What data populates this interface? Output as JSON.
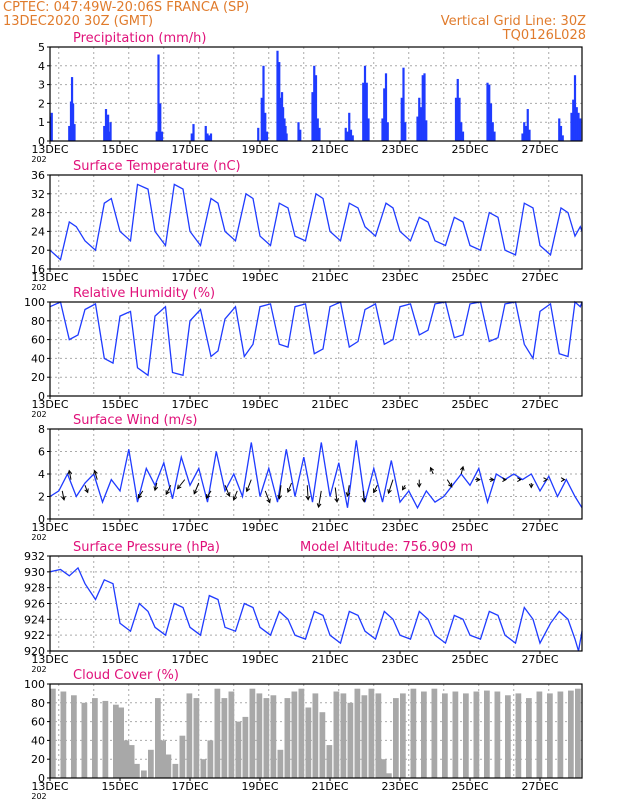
{
  "header": {
    "line1": "CPTEC:   047:49W-20:06S   FRANCA (SP)",
    "line2": "13DEC2020 30Z (GMT)",
    "grid_note": "Vertical Grid Line: 30Z",
    "run_id": "TQ0126L028"
  },
  "colors": {
    "header": "#e07b2c",
    "panel_title": "#e0117a",
    "series": "#1f3bff",
    "cloud": "#a8a8a8",
    "grid": "#aaaaaa"
  },
  "x_axis": {
    "tick_labels": [
      "13DEC",
      "15DEC",
      "17DEC",
      "19DEC",
      "21DEC",
      "23DEC",
      "25DEC",
      "27DEC"
    ],
    "year_fragment": "202",
    "start_day": 13,
    "end_day": 28.2
  },
  "chart_data": [
    {
      "id": "precip",
      "type": "bar",
      "title": "Precipitation (mm/h)",
      "ylim": [
        0,
        5
      ],
      "yticks": [
        0,
        1,
        2,
        3,
        4,
        5
      ],
      "grid": true,
      "x": [
        13.02,
        13.05,
        13.55,
        13.6,
        13.63,
        13.66,
        13.7,
        14.55,
        14.6,
        14.63,
        14.66,
        14.7,
        14.73,
        16.05,
        16.1,
        16.15,
        16.2,
        17.05,
        17.1,
        17.45,
        17.5,
        17.55,
        17.6,
        18.95,
        19.05,
        19.1,
        19.15,
        19.2,
        19.5,
        19.55,
        19.6,
        19.63,
        19.66,
        19.7,
        19.73,
        19.76,
        20.1,
        20.15,
        20.5,
        20.55,
        20.6,
        20.65,
        20.7,
        21.45,
        21.5,
        21.55,
        21.6,
        21.65,
        21.95,
        22.0,
        22.05,
        22.1,
        22.5,
        22.55,
        22.6,
        22.65,
        23.05,
        23.1,
        23.15,
        23.5,
        23.55,
        23.6,
        23.65,
        23.7,
        23.75,
        24.6,
        24.65,
        24.7,
        24.75,
        24.8,
        25.5,
        25.55,
        25.6,
        25.65,
        25.7,
        26.5,
        26.55,
        26.6,
        26.65,
        26.7,
        27.55,
        27.6,
        27.65,
        27.9,
        27.95,
        28.0,
        28.05,
        28.1,
        28.15
      ],
      "values": [
        1.3,
        1.5,
        0.8,
        2.1,
        3.4,
        2.0,
        0.9,
        0.8,
        1.7,
        1.0,
        1.4,
        0.5,
        1.0,
        0.5,
        4.6,
        2.0,
        0.5,
        0.4,
        0.9,
        0.8,
        0.4,
        0.3,
        0.4,
        0.7,
        2.3,
        4.0,
        1.5,
        0.5,
        4.8,
        4.2,
        2.3,
        2.6,
        1.8,
        1.2,
        0.8,
        0.4,
        1.0,
        0.6,
        2.6,
        4.0,
        3.5,
        1.2,
        0.7,
        0.7,
        0.5,
        1.5,
        0.6,
        0.3,
        3.1,
        4.0,
        3.1,
        1.2,
        1.2,
        2.8,
        3.6,
        1.0,
        2.3,
        3.9,
        1.0,
        1.3,
        2.3,
        1.8,
        3.5,
        3.6,
        1.1,
        2.3,
        3.3,
        2.3,
        1.0,
        0.5,
        3.1,
        3.0,
        2.0,
        1.0,
        0.5,
        0.4,
        1.0,
        0.8,
        1.7,
        0.6,
        1.2,
        0.8,
        0.3,
        1.5,
        2.2,
        3.5,
        1.8,
        1.5,
        1.2
      ]
    },
    {
      "id": "temp",
      "type": "line",
      "title": "Surface Temperature (nC)",
      "ylim": [
        16,
        36
      ],
      "yticks": [
        16,
        20,
        24,
        28,
        32,
        36
      ],
      "grid": true,
      "x": [
        13.0,
        13.3,
        13.55,
        13.75,
        14.0,
        14.3,
        14.55,
        14.75,
        15.0,
        15.3,
        15.5,
        15.8,
        16.0,
        16.3,
        16.55,
        16.8,
        17.0,
        17.3,
        17.6,
        17.8,
        18.0,
        18.3,
        18.6,
        18.8,
        19.0,
        19.3,
        19.55,
        19.8,
        20.0,
        20.3,
        20.6,
        20.8,
        21.0,
        21.3,
        21.55,
        21.8,
        22.0,
        22.3,
        22.6,
        22.8,
        23.0,
        23.3,
        23.55,
        23.8,
        24.0,
        24.3,
        24.55,
        24.8,
        25.0,
        25.3,
        25.55,
        25.8,
        26.0,
        26.3,
        26.55,
        26.8,
        27.0,
        27.3,
        27.6,
        27.8,
        28.0,
        28.15,
        28.2
      ],
      "values": [
        20,
        18,
        26,
        25,
        22,
        20,
        30,
        31,
        24,
        22,
        34,
        33,
        24,
        21,
        34,
        33,
        24,
        21,
        31,
        30,
        24,
        22,
        32,
        31,
        23,
        21,
        30,
        29,
        23,
        22,
        32,
        31,
        24,
        22,
        30,
        29,
        25,
        23,
        30,
        29,
        24,
        22,
        27,
        26,
        22,
        21,
        27,
        26,
        21,
        20,
        28,
        27,
        20,
        19,
        30,
        29,
        21,
        19,
        29,
        28,
        23,
        25,
        24
      ]
    },
    {
      "id": "rh",
      "type": "line",
      "title": "Relative Humidity (%)",
      "ylim": [
        0,
        100
      ],
      "yticks": [
        0,
        20,
        40,
        60,
        80,
        100
      ],
      "grid": true,
      "x": [
        13.0,
        13.3,
        13.55,
        13.8,
        14.0,
        14.3,
        14.55,
        14.8,
        15.0,
        15.3,
        15.5,
        15.8,
        16.0,
        16.3,
        16.5,
        16.8,
        17.0,
        17.3,
        17.6,
        17.8,
        18.0,
        18.3,
        18.55,
        18.8,
        19.0,
        19.3,
        19.55,
        19.8,
        20.0,
        20.3,
        20.55,
        20.8,
        21.0,
        21.3,
        21.55,
        21.8,
        22.0,
        22.3,
        22.55,
        22.8,
        23.0,
        23.3,
        23.55,
        23.8,
        24.0,
        24.3,
        24.55,
        24.8,
        25.0,
        25.3,
        25.55,
        25.8,
        26.0,
        26.3,
        26.55,
        26.8,
        27.0,
        27.3,
        27.55,
        27.8,
        28.0,
        28.15,
        28.2
      ],
      "values": [
        95,
        100,
        60,
        65,
        92,
        98,
        40,
        35,
        85,
        90,
        30,
        22,
        85,
        95,
        25,
        22,
        80,
        92,
        42,
        48,
        82,
        95,
        42,
        55,
        95,
        98,
        55,
        52,
        95,
        98,
        45,
        50,
        95,
        100,
        52,
        58,
        92,
        98,
        55,
        60,
        95,
        98,
        65,
        70,
        98,
        100,
        62,
        65,
        98,
        100,
        58,
        62,
        98,
        100,
        55,
        40,
        90,
        98,
        45,
        42,
        100,
        95,
        100
      ]
    },
    {
      "id": "wind",
      "type": "line",
      "title": "Surface Wind (m/s)",
      "ylim": [
        0,
        8
      ],
      "yticks": [
        0,
        2,
        4,
        6,
        8
      ],
      "grid": true,
      "x": [
        13.0,
        13.25,
        13.5,
        13.75,
        14.0,
        14.25,
        14.5,
        14.75,
        15.0,
        15.25,
        15.5,
        15.75,
        16.0,
        16.25,
        16.5,
        16.75,
        17.0,
        17.25,
        17.5,
        17.75,
        18.0,
        18.25,
        18.5,
        18.75,
        19.0,
        19.25,
        19.5,
        19.75,
        20.0,
        20.25,
        20.5,
        20.75,
        21.0,
        21.25,
        21.5,
        21.75,
        22.0,
        22.25,
        22.5,
        22.75,
        23.0,
        23.25,
        23.5,
        23.75,
        24.0,
        24.25,
        24.5,
        24.75,
        25.0,
        25.25,
        25.5,
        25.75,
        26.0,
        26.25,
        26.5,
        26.75,
        27.0,
        27.25,
        27.5,
        27.75,
        28.0,
        28.2
      ],
      "values": [
        2.0,
        2.5,
        4.0,
        2.0,
        3.2,
        4.0,
        1.5,
        3.5,
        2.5,
        6.2,
        1.5,
        4.5,
        3.0,
        5.0,
        1.8,
        5.5,
        3.0,
        4.5,
        1.5,
        6.0,
        2.5,
        4.0,
        2.0,
        6.8,
        2.0,
        4.5,
        1.5,
        6.2,
        2.0,
        5.5,
        1.5,
        6.8,
        2.0,
        5.0,
        1.0,
        7.0,
        1.5,
        4.5,
        1.5,
        5.2,
        1.5,
        2.5,
        1.0,
        2.5,
        1.5,
        2.0,
        3.0,
        4.0,
        3.0,
        4.5,
        1.5,
        4.0,
        3.5,
        4.0,
        3.5,
        4.0,
        2.5,
        3.8,
        2.0,
        3.5,
        2.0,
        1.0
      ],
      "arrows": {
        "x": [
          13.35,
          13.6,
          14.0,
          14.35,
          15.65,
          16.05,
          16.45,
          16.85,
          17.25,
          17.6,
          18.0,
          18.35,
          18.75,
          19.15,
          19.6,
          19.9,
          20.35,
          20.75,
          21.15,
          21.55,
          21.95,
          22.35,
          22.8,
          23.15,
          23.55,
          23.95,
          24.35,
          24.75,
          25.15,
          25.55,
          25.95,
          26.4,
          26.75,
          27.2,
          27.65
        ],
        "y": [
          2.5,
          3.5,
          3.0,
          3.5,
          2.5,
          3.2,
          3.0,
          3.5,
          3.2,
          2.5,
          3.0,
          2.5,
          3.5,
          2.5,
          3.0,
          3.2,
          3.0,
          2.5,
          2.8,
          3.0,
          2.5,
          3.0,
          3.5,
          3.0,
          3.5,
          4.0,
          3.5,
          4.0,
          3.5,
          3.5,
          3.5,
          3.5,
          3.2,
          3.5,
          3.5
        ],
        "u": [
          0.2,
          -0.2,
          0.3,
          -0.3,
          -0.5,
          -0.2,
          -0.5,
          -0.8,
          -0.5,
          -0.5,
          0.5,
          -0.4,
          -0.5,
          0.5,
          -0.2,
          -0.4,
          0.1,
          -0.3,
          0.2,
          -0.2,
          0.1,
          -0.4,
          -0.5,
          -0.3,
          0.0,
          -0.3,
          0.5,
          0.2,
          0.5,
          0.5,
          0.3,
          0.2,
          0.0,
          0.0,
          0.2
        ],
        "v": [
          -1.0,
          1.0,
          -0.8,
          1.0,
          -0.8,
          -0.8,
          -1.0,
          -1.0,
          -1.2,
          -0.8,
          -1.2,
          -1.0,
          -1.3,
          -1.3,
          -1.5,
          -1.0,
          -1.6,
          -1.8,
          -1.6,
          -1.2,
          -1.2,
          -0.8,
          -1.5,
          -0.5,
          -0.8,
          0.7,
          -0.8,
          0.8,
          0.0,
          0.0,
          0.0,
          0.0,
          -0.5,
          0.0,
          0.0
        ]
      }
    },
    {
      "id": "pres",
      "type": "line",
      "title": "Surface Pressure (hPa)",
      "subtitle": "Model Altitude: 756.909  m",
      "ylim": [
        920,
        932
      ],
      "yticks": [
        920,
        922,
        924,
        926,
        928,
        930,
        932
      ],
      "grid": true,
      "x": [
        13.0,
        13.3,
        13.55,
        13.8,
        14.0,
        14.3,
        14.55,
        14.8,
        15.0,
        15.3,
        15.55,
        15.8,
        16.0,
        16.3,
        16.55,
        16.8,
        17.0,
        17.3,
        17.55,
        17.8,
        18.0,
        18.3,
        18.55,
        18.8,
        19.0,
        19.3,
        19.55,
        19.8,
        20.0,
        20.3,
        20.55,
        20.8,
        21.0,
        21.3,
        21.55,
        21.8,
        22.0,
        22.3,
        22.55,
        22.8,
        23.0,
        23.3,
        23.55,
        23.8,
        24.0,
        24.3,
        24.55,
        24.8,
        25.0,
        25.3,
        25.55,
        25.8,
        26.0,
        26.3,
        26.55,
        26.8,
        27.0,
        27.3,
        27.55,
        27.8,
        28.0,
        28.1,
        28.2
      ],
      "values": [
        930.0,
        930.3,
        929.5,
        930.5,
        928.5,
        926.5,
        929.0,
        928.5,
        923.5,
        922.5,
        926.0,
        925.0,
        923.0,
        922.0,
        926.0,
        925.5,
        923.0,
        922.0,
        927.0,
        926.5,
        923.0,
        922.5,
        926.0,
        925.5,
        923.0,
        922.0,
        925.0,
        924.0,
        922.0,
        921.5,
        925.0,
        924.5,
        922.0,
        921.0,
        925.0,
        924.5,
        922.5,
        921.5,
        925.0,
        924.0,
        922.0,
        921.5,
        925.0,
        924.0,
        922.0,
        921.0,
        924.5,
        924.0,
        922.0,
        921.5,
        925.0,
        924.5,
        922.0,
        921.0,
        925.5,
        924.0,
        921.0,
        923.5,
        925.0,
        924.0,
        921.5,
        920.0,
        922.5
      ]
    },
    {
      "id": "cloud",
      "type": "area",
      "title": "Cloud Cover (%)",
      "ylim": [
        0,
        100
      ],
      "yticks": [
        0,
        20,
        40,
        60,
        80,
        100
      ],
      "grid": true,
      "x": [
        13.0,
        13.3,
        13.6,
        13.9,
        14.2,
        14.5,
        14.8,
        14.95,
        15.1,
        15.25,
        15.4,
        15.6,
        15.8,
        16.0,
        16.15,
        16.3,
        16.5,
        16.7,
        16.9,
        17.1,
        17.3,
        17.5,
        17.7,
        17.9,
        18.1,
        18.3,
        18.5,
        18.7,
        18.9,
        19.1,
        19.3,
        19.5,
        19.7,
        19.9,
        20.1,
        20.3,
        20.5,
        20.7,
        20.9,
        21.1,
        21.3,
        21.5,
        21.7,
        21.9,
        22.1,
        22.3,
        22.45,
        22.6,
        22.8,
        23.0,
        23.3,
        23.6,
        23.9,
        24.2,
        24.5,
        24.8,
        25.1,
        25.4,
        25.7,
        26.0,
        26.3,
        26.6,
        26.9,
        27.2,
        27.5,
        27.8,
        28.0,
        28.2
      ],
      "values": [
        95,
        92,
        88,
        80,
        85,
        82,
        78,
        75,
        40,
        35,
        15,
        8,
        30,
        85,
        40,
        25,
        15,
        45,
        90,
        85,
        20,
        40,
        95,
        85,
        92,
        60,
        65,
        95,
        90,
        85,
        88,
        30,
        85,
        92,
        95,
        75,
        90,
        70,
        35,
        92,
        90,
        80,
        95,
        88,
        95,
        90,
        20,
        5,
        85,
        90,
        95,
        92,
        95,
        90,
        92,
        90,
        92,
        93,
        92,
        88,
        90,
        85,
        92,
        90,
        92,
        93,
        95,
        75
      ]
    }
  ]
}
